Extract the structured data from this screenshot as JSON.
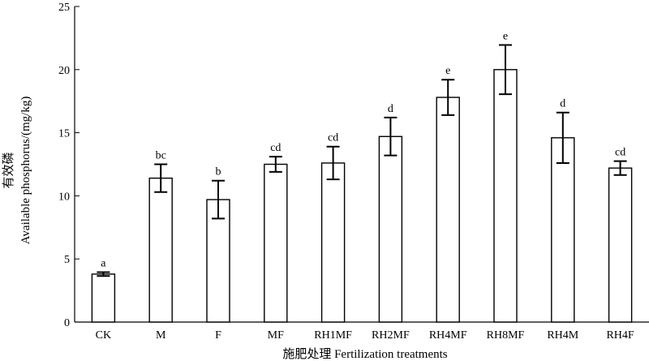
{
  "chart_data": {
    "type": "bar",
    "title": "",
    "xlabel": "施肥处理 Fertilization treatments",
    "ylabel_cn": "有效磷",
    "ylabel": "Available phosphorus/(mg/kg)",
    "ylim": [
      0,
      25
    ],
    "yticks": [
      0,
      5,
      10,
      15,
      20,
      25
    ],
    "grid": false,
    "bar_fill": "#ffffff",
    "bar_stroke": "#000000",
    "categories": [
      "CK",
      "M",
      "F",
      "MF",
      "RH1MF",
      "RH2MF",
      "RH4MF",
      "RH8MF",
      "RH4M",
      "RH4F"
    ],
    "values": [
      3.8,
      11.4,
      9.7,
      12.5,
      12.6,
      14.7,
      17.8,
      20.0,
      14.6,
      12.2
    ],
    "errors": [
      0.15,
      1.1,
      1.5,
      0.6,
      1.3,
      1.5,
      1.4,
      1.95,
      2.0,
      0.55
    ],
    "significance": [
      "a",
      "bc",
      "b",
      "cd",
      "cd",
      "d",
      "e",
      "e",
      "d",
      "cd"
    ]
  }
}
